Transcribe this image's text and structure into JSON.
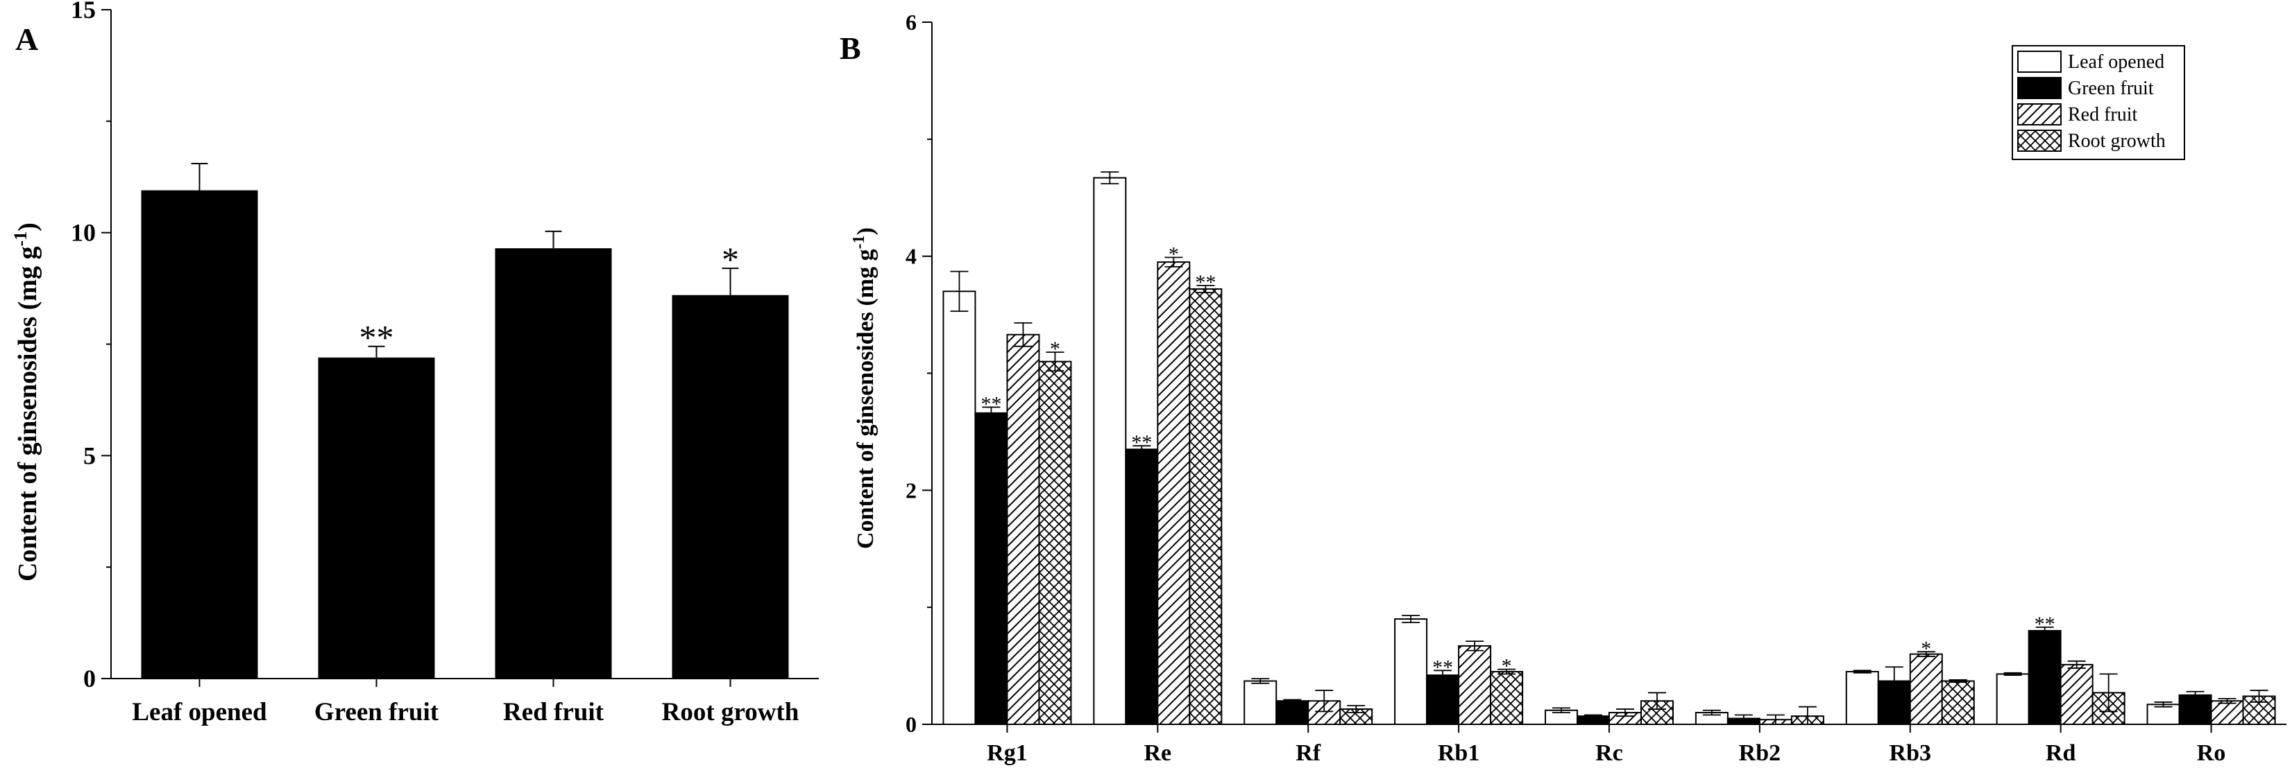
{
  "chart_data": [
    {
      "panel": "A",
      "type": "bar",
      "ylabel": "Content of ginsenosides (mg g",
      "ylabel_sup": "-1",
      "ylabel_close": ")",
      "ylim": [
        0,
        15
      ],
      "yticks": [
        0,
        5,
        10,
        15
      ],
      "categories": [
        "Leaf opened",
        "Green fruit",
        "Red fruit",
        "Root growth"
      ],
      "values": [
        10.95,
        7.2,
        9.65,
        8.6
      ],
      "errors": [
        0.6,
        0.25,
        0.38,
        0.6
      ],
      "significance": [
        "",
        "**",
        "",
        "*"
      ],
      "bar_color": "#000000"
    },
    {
      "panel": "B",
      "type": "bar",
      "ylabel": "Content of ginsenosides (mg g",
      "ylabel_sup": "-1",
      "ylabel_close": ")",
      "ylim": [
        0,
        6
      ],
      "yticks": [
        0,
        2,
        4,
        6
      ],
      "legend_position": "top-right",
      "categories": [
        "Rg1",
        "Re",
        "Rf",
        "Rb1",
        "Rc",
        "Rb2",
        "Rb3",
        "Rd",
        "Ro"
      ],
      "series": [
        {
          "name": "Leaf opened",
          "pattern": "white",
          "values": [
            3.7,
            4.67,
            0.37,
            0.9,
            0.12,
            0.1,
            0.45,
            0.43,
            0.17
          ],
          "errors": [
            0.17,
            0.05,
            0.02,
            0.03,
            0.02,
            0.02,
            0.01,
            0.01,
            0.02
          ],
          "significance": [
            "",
            "",
            "",
            "",
            "",
            "",
            "",
            "",
            ""
          ]
        },
        {
          "name": "Green fruit",
          "pattern": "black",
          "values": [
            2.66,
            2.35,
            0.2,
            0.42,
            0.07,
            0.05,
            0.37,
            0.8,
            0.25
          ],
          "errors": [
            0.05,
            0.03,
            0.01,
            0.04,
            0.01,
            0.03,
            0.12,
            0.03,
            0.03
          ],
          "significance": [
            "**",
            "**",
            "",
            "**",
            "",
            "",
            "",
            "**",
            ""
          ]
        },
        {
          "name": "Red fruit",
          "pattern": "hatch",
          "values": [
            3.33,
            3.95,
            0.2,
            0.67,
            0.1,
            0.04,
            0.6,
            0.51,
            0.2
          ],
          "errors": [
            0.1,
            0.04,
            0.09,
            0.04,
            0.03,
            0.04,
            0.02,
            0.03,
            0.02
          ],
          "significance": [
            "",
            "*",
            "",
            "",
            "",
            "",
            "*",
            "",
            ""
          ]
        },
        {
          "name": "Root growth",
          "pattern": "crosshatch",
          "values": [
            3.1,
            3.72,
            0.13,
            0.45,
            0.2,
            0.07,
            0.37,
            0.27,
            0.24
          ],
          "errors": [
            0.08,
            0.03,
            0.03,
            0.02,
            0.07,
            0.08,
            0.01,
            0.16,
            0.05
          ],
          "significance": [
            "*",
            "**",
            "",
            "*",
            "",
            "",
            "",
            "",
            ""
          ]
        }
      ]
    }
  ]
}
